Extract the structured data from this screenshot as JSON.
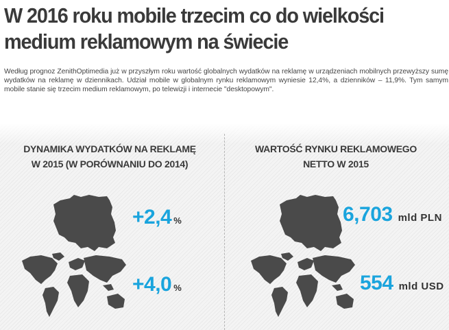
{
  "header": {
    "title": "W 2016 roku mobile trzecim co do wielkości medium reklamowym na świecie",
    "intro": "Według prognoz ZenithOptimedia już w przyszłym roku wartość globalnych wydatków na reklamę w urządzeniach mobilnych przewyższy sumę wydatków na reklamę w dziennikach. Udział mobile w globalnym rynku reklamowym wyniesie 12,4%, a dzienników – 11,9%. Tym samym mobile stanie się trzecim medium reklamowym, po telewizji i internecie \"desktopowym\"."
  },
  "left": {
    "heading_line1": "DYNAMIKA WYDATKÓW NA REKLAMĘ",
    "heading_line2": "W 2015 (W PORÓWNANIU DO 2014)",
    "poland_value": "+2,4",
    "poland_unit": "%",
    "world_value": "+4,0",
    "world_unit": "%"
  },
  "right": {
    "heading_line1": "WARTOŚĆ RYNKU REKLAMOWEGO",
    "heading_line2": "NETTO W 2015",
    "poland_value": "6,703",
    "poland_unit": "mld PLN",
    "world_value": "554",
    "world_unit": "mld USD"
  },
  "colors": {
    "accent": "#1aa4dd",
    "map": "#4a4a4a",
    "heading": "#3a3a3a"
  }
}
